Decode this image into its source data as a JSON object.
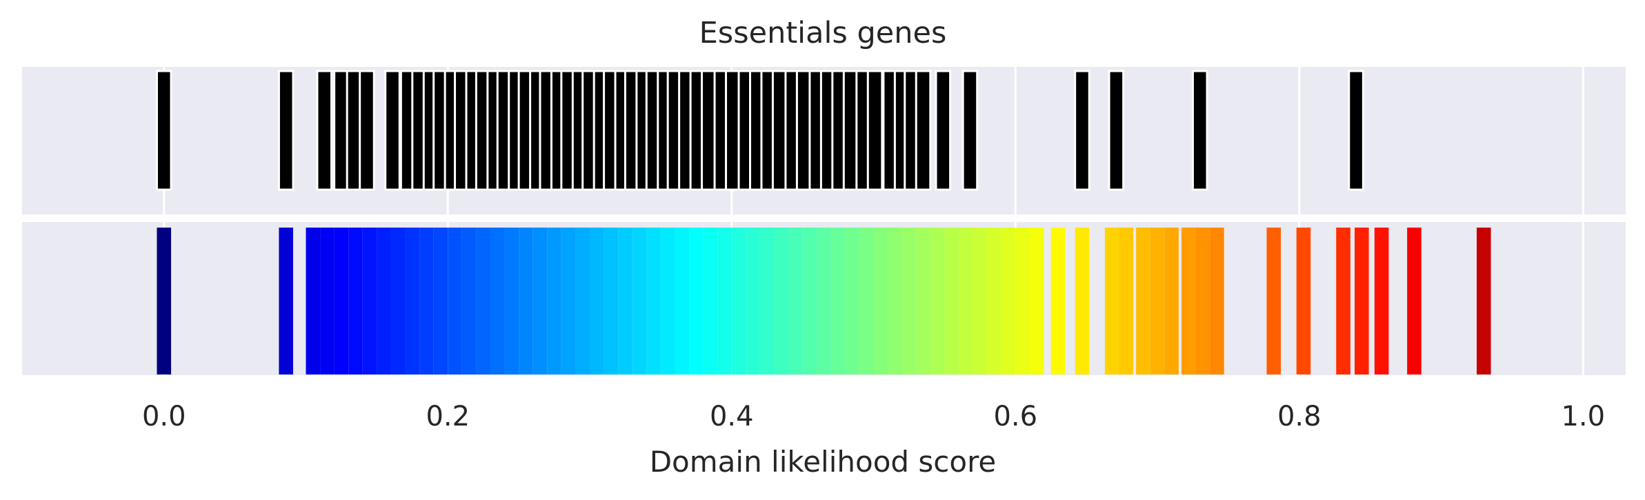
{
  "chart_data": {
    "type": "bar",
    "title": "Essentials genes",
    "xlabel": "Domain likelihood score",
    "ylabel": "",
    "xlim": [
      -0.1,
      1.03
    ],
    "xticks": [
      0.0,
      0.2,
      0.4,
      0.6,
      0.8,
      1.0
    ],
    "xtick_labels": [
      "0.0",
      "0.2",
      "0.4",
      "0.6",
      "0.8",
      "1.0"
    ],
    "grid": true,
    "legend": "none",
    "colormap": "jet",
    "bar_width": 0.01,
    "panels": [
      "essential-gene-barcode",
      "score-colorbar"
    ],
    "scores": [
      0.0,
      0.086,
      0.113,
      0.125,
      0.134,
      0.143,
      0.161,
      0.172,
      0.18,
      0.188,
      0.195,
      0.203,
      0.21,
      0.218,
      0.225,
      0.233,
      0.24,
      0.248,
      0.255,
      0.263,
      0.27,
      0.278,
      0.285,
      0.293,
      0.3,
      0.308,
      0.315,
      0.323,
      0.33,
      0.338,
      0.345,
      0.353,
      0.36,
      0.368,
      0.376,
      0.384,
      0.393,
      0.401,
      0.41,
      0.418,
      0.426,
      0.434,
      0.443,
      0.451,
      0.46,
      0.468,
      0.476,
      0.484,
      0.493,
      0.501,
      0.512,
      0.52,
      0.527,
      0.535,
      0.549,
      0.568,
      0.647,
      0.671,
      0.73,
      0.84
    ],
    "colorbar_scores": [
      0.0,
      0.086,
      0.105,
      0.115,
      0.125,
      0.135,
      0.145,
      0.155,
      0.165,
      0.175,
      0.185,
      0.195,
      0.205,
      0.215,
      0.225,
      0.235,
      0.245,
      0.255,
      0.265,
      0.275,
      0.285,
      0.295,
      0.305,
      0.315,
      0.325,
      0.335,
      0.345,
      0.355,
      0.365,
      0.375,
      0.385,
      0.395,
      0.405,
      0.415,
      0.425,
      0.435,
      0.445,
      0.455,
      0.465,
      0.475,
      0.485,
      0.495,
      0.505,
      0.515,
      0.525,
      0.535,
      0.545,
      0.555,
      0.565,
      0.575,
      0.585,
      0.595,
      0.605,
      0.615,
      0.63,
      0.647,
      0.668,
      0.678,
      0.69,
      0.7,
      0.71,
      0.722,
      0.732,
      0.742,
      0.782,
      0.803,
      0.831,
      0.844,
      0.858,
      0.881,
      0.93
    ]
  }
}
